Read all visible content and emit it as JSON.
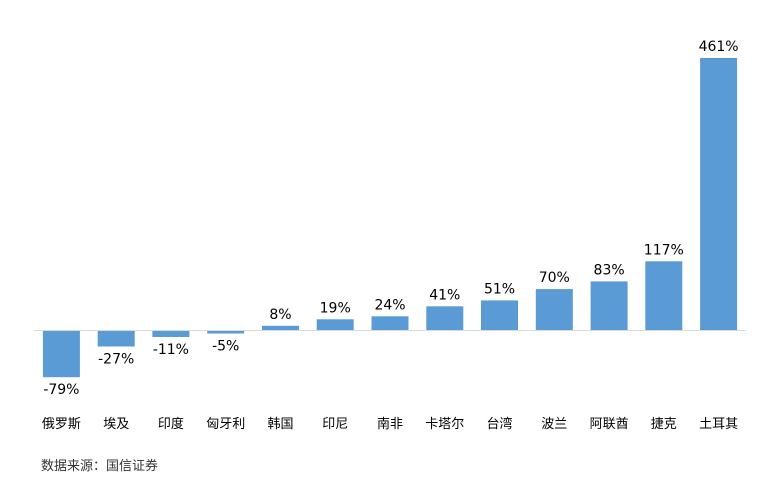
{
  "chart_data": {
    "type": "bar",
    "categories": [
      "俄罗斯",
      "埃及",
      "印度",
      "匈牙利",
      "韩国",
      "印尼",
      "南非",
      "卡塔尔",
      "台湾",
      "波兰",
      "阿联酋",
      "捷克",
      "土耳其"
    ],
    "values": [
      -79,
      -27,
      -11,
      -5,
      8,
      19,
      24,
      41,
      51,
      70,
      83,
      117,
      461
    ],
    "data_labels": [
      "-79%",
      "-27%",
      "-11%",
      "-5%",
      "8%",
      "19%",
      "24%",
      "41%",
      "51%",
      "70%",
      "83%",
      "117%",
      "461%"
    ],
    "title": "",
    "xlabel": "",
    "ylabel": "",
    "ylim": [
      -95,
      480
    ],
    "grid": false,
    "legend": "none",
    "bar_color": "#5b9bd5",
    "axis_color": "#d9d9d9"
  },
  "source": "数据来源：国信证券"
}
